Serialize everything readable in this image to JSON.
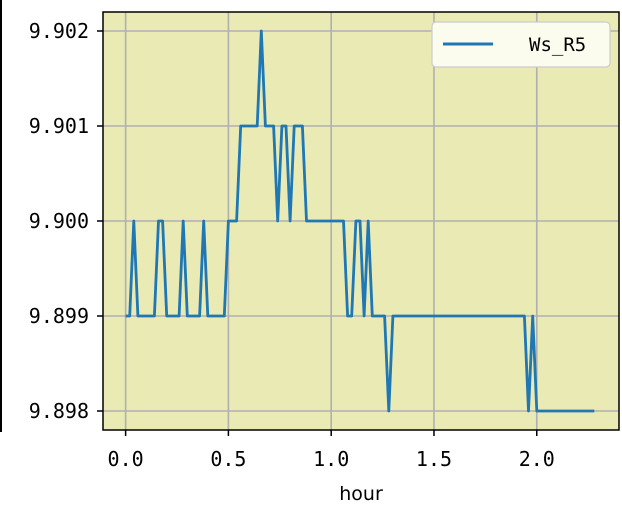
{
  "chart_data": {
    "type": "line",
    "title": "",
    "xlabel": "hour",
    "ylabel": "",
    "xlim": [
      -0.11,
      2.4
    ],
    "ylim": [
      9.8978,
      9.9022
    ],
    "xticks": [
      0.0,
      0.5,
      1.0,
      1.5,
      2.0
    ],
    "xtick_labels": [
      "0.0",
      "0.5",
      "1.0",
      "1.5",
      "2.0"
    ],
    "yticks": [
      9.898,
      9.899,
      9.9,
      9.901,
      9.902
    ],
    "ytick_labels": [
      "9.898",
      "9.899",
      "9.900",
      "9.901",
      "9.902"
    ],
    "grid": true,
    "legend_position": "top-right",
    "background_color": "#eaeab5",
    "series": [
      {
        "name": "Ws_R5",
        "color": "#1f77b4",
        "x": [
          0.0,
          0.02,
          0.04,
          0.06,
          0.08,
          0.1,
          0.12,
          0.14,
          0.16,
          0.18,
          0.2,
          0.22,
          0.24,
          0.26,
          0.28,
          0.3,
          0.32,
          0.34,
          0.36,
          0.38,
          0.4,
          0.42,
          0.44,
          0.46,
          0.48,
          0.5,
          0.52,
          0.54,
          0.56,
          0.58,
          0.6,
          0.62,
          0.64,
          0.66,
          0.68,
          0.7,
          0.72,
          0.74,
          0.76,
          0.78,
          0.8,
          0.82,
          0.84,
          0.86,
          0.88,
          0.9,
          0.92,
          0.94,
          0.96,
          0.98,
          1.0,
          1.02,
          1.04,
          1.06,
          1.08,
          1.1,
          1.12,
          1.14,
          1.16,
          1.18,
          1.2,
          1.22,
          1.24,
          1.26,
          1.28,
          1.3,
          1.32,
          1.34,
          1.4,
          1.5,
          1.6,
          1.7,
          1.8,
          1.9,
          1.94,
          1.96,
          1.98,
          2.0,
          2.02,
          2.1,
          2.2,
          2.28
        ],
        "y": [
          9.899,
          9.899,
          9.9,
          9.899,
          9.899,
          9.899,
          9.899,
          9.899,
          9.9,
          9.9,
          9.899,
          9.899,
          9.899,
          9.899,
          9.9,
          9.899,
          9.899,
          9.899,
          9.899,
          9.9,
          9.899,
          9.899,
          9.899,
          9.899,
          9.899,
          9.9,
          9.9,
          9.9,
          9.901,
          9.901,
          9.901,
          9.901,
          9.901,
          9.902,
          9.901,
          9.901,
          9.901,
          9.9,
          9.901,
          9.901,
          9.9,
          9.901,
          9.901,
          9.901,
          9.9,
          9.9,
          9.9,
          9.9,
          9.9,
          9.9,
          9.9,
          9.9,
          9.9,
          9.9,
          9.899,
          9.899,
          9.9,
          9.9,
          9.899,
          9.9,
          9.899,
          9.899,
          9.899,
          9.899,
          9.898,
          9.899,
          9.899,
          9.899,
          9.899,
          9.899,
          9.899,
          9.899,
          9.899,
          9.899,
          9.899,
          9.898,
          9.899,
          9.898,
          9.898,
          9.898,
          9.898,
          9.898
        ]
      }
    ]
  }
}
